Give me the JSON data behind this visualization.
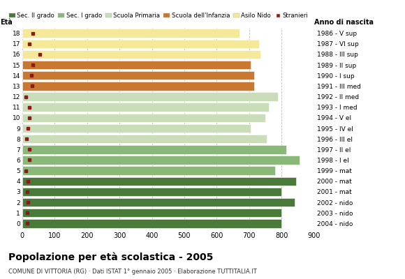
{
  "ages": [
    18,
    17,
    16,
    15,
    14,
    13,
    12,
    11,
    10,
    9,
    8,
    7,
    6,
    5,
    4,
    3,
    2,
    1,
    0
  ],
  "years": [
    "1986 - V sup",
    "1987 - VI sup",
    "1988 - III sup",
    "1989 - II sup",
    "1990 - I sup",
    "1991 - III med",
    "1992 - II med",
    "1993 - I med",
    "1994 - V el",
    "1995 - IV el",
    "1996 - III el",
    "1997 - II el",
    "1998 - I el",
    "1999 - mat",
    "2000 - mat",
    "2001 - mat",
    "2002 - nido",
    "2003 - nido",
    "2004 - nido"
  ],
  "bar_values": [
    800,
    800,
    840,
    800,
    845,
    780,
    855,
    815,
    755,
    705,
    750,
    760,
    790,
    715,
    715,
    705,
    735,
    730,
    670
  ],
  "stranieri": [
    15,
    15,
    18,
    15,
    18,
    12,
    22,
    22,
    14,
    18,
    22,
    22,
    10,
    30,
    28,
    32,
    55,
    22,
    32
  ],
  "category_colors": [
    "#4a7a3a",
    "#4a7a3a",
    "#4a7a3a",
    "#4a7a3a",
    "#4a7a3a",
    "#8ab878",
    "#8ab878",
    "#8ab878",
    "#c8ddb8",
    "#c8ddb8",
    "#c8ddb8",
    "#c8ddb8",
    "#c8ddb8",
    "#c87830",
    "#c87830",
    "#c87830",
    "#f5e898",
    "#f5e898",
    "#f5e898"
  ],
  "stranieri_color": "#8b1a1a",
  "bg_color": "#ffffff",
  "grid_color": "#bbbbbb",
  "title": "Popolazione per età scolastica - 2005",
  "subtitle": "COMUNE DI VITTORIA (RG) · Dati ISTAT 1° gennaio 2005 · Elaborazione TUTTITALIA.IT",
  "xlabel_age": "Età",
  "xlabel_year": "Anno di nascita",
  "xlim": [
    0,
    900
  ],
  "xticks": [
    0,
    100,
    200,
    300,
    400,
    500,
    600,
    700,
    800,
    900
  ],
  "legend_labels": [
    "Sec. II grado",
    "Sec. I grado",
    "Scuola Primaria",
    "Scuola dell'Infanzia",
    "Asilo Nido",
    "Stranieri"
  ],
  "legend_colors": [
    "#4a7a3a",
    "#8ab878",
    "#c8ddb8",
    "#c87830",
    "#f5e898",
    "#8b1a1a"
  ]
}
